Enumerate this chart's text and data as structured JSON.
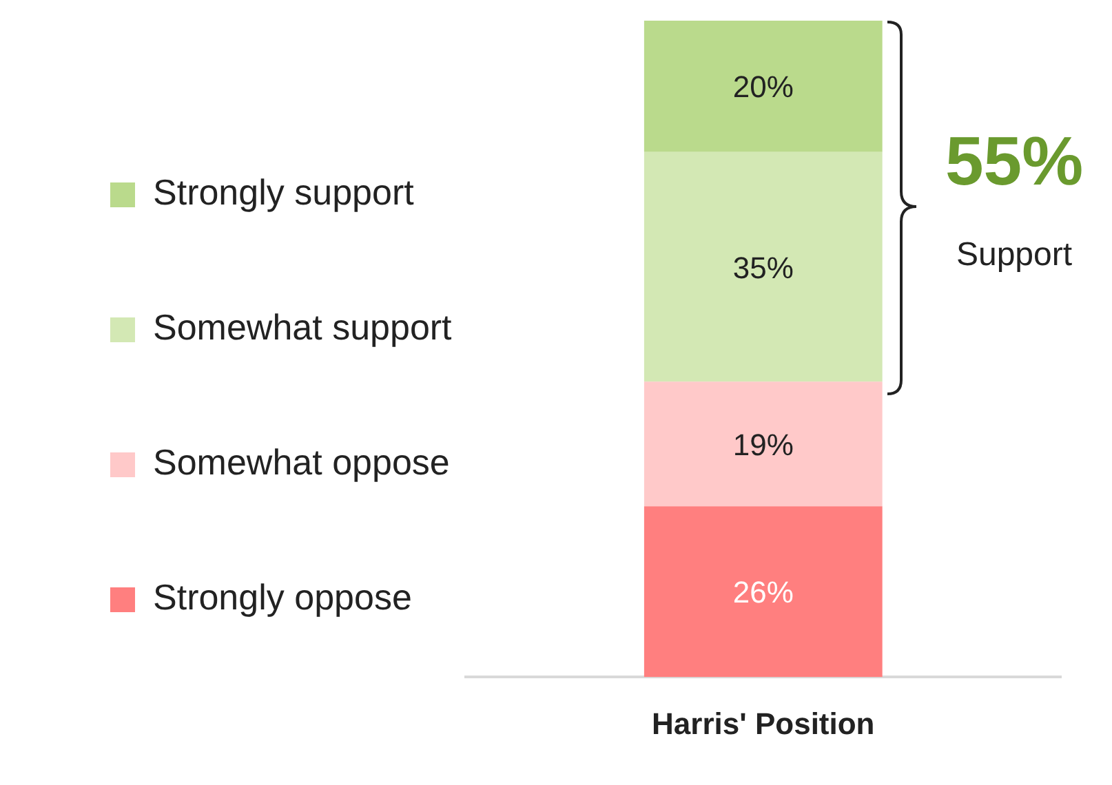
{
  "chart_data": {
    "type": "bar",
    "stacked": true,
    "categories": [
      "Harris' Position"
    ],
    "series": [
      {
        "name": "Strongly oppose",
        "color": "#ff7f7f",
        "values": [
          26
        ],
        "value_labels": [
          "26%"
        ]
      },
      {
        "name": "Somewhat oppose",
        "color": "#ffc9c9",
        "values": [
          19
        ],
        "value_labels": [
          "19%"
        ]
      },
      {
        "name": "Somewhat support",
        "color": "#d3e8b4",
        "values": [
          35
        ],
        "value_labels": [
          "35%"
        ]
      },
      {
        "name": "Strongly support",
        "color": "#bada8c",
        "values": [
          20
        ],
        "value_labels": [
          "20%"
        ]
      }
    ],
    "legend": "left",
    "grid": false,
    "tick_labels": "x",
    "annotations": [
      "55%",
      "Support"
    ]
  }
}
